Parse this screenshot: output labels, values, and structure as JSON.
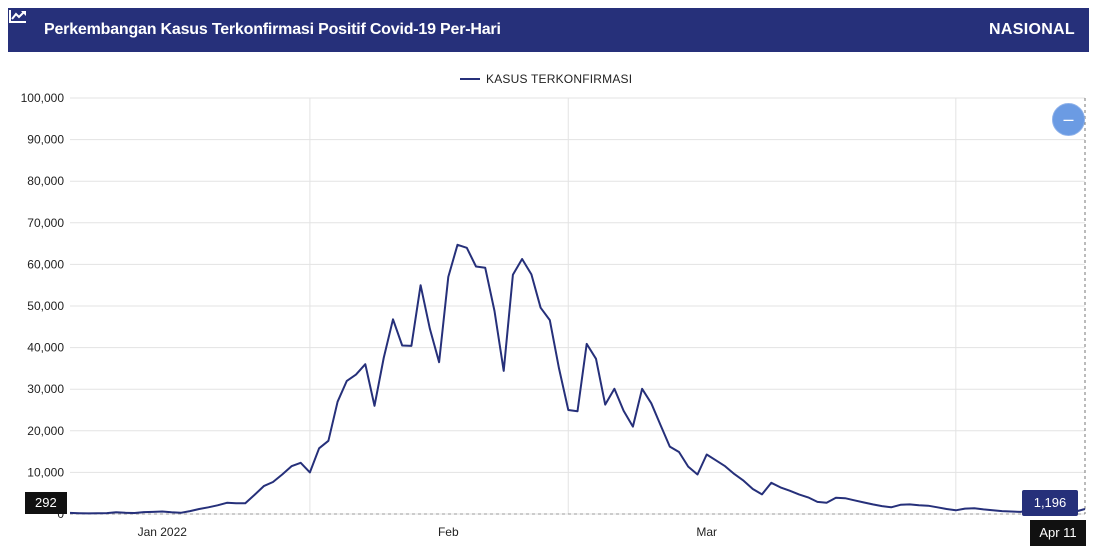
{
  "header": {
    "icon": "line-chart-icon",
    "title": "Perkembangan Kasus Terkonfirmasi Positif Covid-19 Per-Hari",
    "region_label": "NASIONAL",
    "bg_color": "#26307a"
  },
  "zoom_button": {
    "icon": "minus-icon",
    "label": "–"
  },
  "crosshair": {
    "y_value_label": "292",
    "x_date_label": "Apr 11",
    "tooltip_value": "1,196"
  },
  "chart_data": {
    "type": "line",
    "title": "Perkembangan Kasus Terkonfirmasi Positif Covid-19 Per-Hari",
    "xlabel": "",
    "ylabel": "",
    "legend": {
      "position": "top-center",
      "entries": [
        "KASUS TERKONFIRMASI"
      ]
    },
    "grid": true,
    "ylim": [
      0,
      100000
    ],
    "y_ticks": [
      0,
      10000,
      20000,
      30000,
      40000,
      50000,
      60000,
      70000,
      80000,
      90000,
      100000
    ],
    "y_tick_labels": [
      "0",
      "10,000",
      "20,000",
      "30,000",
      "40,000",
      "50,000",
      "60,000",
      "70,000",
      "80,000",
      "90,000",
      "100,000"
    ],
    "x_tick_labels": [
      {
        "label": "Jan 2022",
        "date": "2022-01-01"
      },
      {
        "label": "Feb",
        "date": "2022-02-01"
      },
      {
        "label": "Mar",
        "date": "2022-03-01"
      },
      {
        "label": "Apr 11",
        "date": "2022-04-11"
      }
    ],
    "xlim": [
      "2021-12-22",
      "2022-04-11"
    ],
    "color": "#26307a",
    "series": [
      {
        "name": "KASUS TERKONFIRMASI",
        "points": [
          [
            "2021-12-22",
            260
          ],
          [
            "2021-12-23",
            200
          ],
          [
            "2021-12-24",
            150
          ],
          [
            "2021-12-25",
            180
          ],
          [
            "2021-12-26",
            220
          ],
          [
            "2021-12-27",
            400
          ],
          [
            "2021-12-28",
            300
          ],
          [
            "2021-12-29",
            250
          ],
          [
            "2021-12-30",
            450
          ],
          [
            "2021-12-31",
            500
          ],
          [
            "2022-01-01",
            600
          ],
          [
            "2022-01-02",
            400
          ],
          [
            "2022-01-03",
            300
          ],
          [
            "2022-01-04",
            700
          ],
          [
            "2022-01-05",
            1200
          ],
          [
            "2022-01-06",
            1600
          ],
          [
            "2022-01-07",
            2100
          ],
          [
            "2022-01-08",
            2700
          ],
          [
            "2022-01-09",
            2600
          ],
          [
            "2022-01-10",
            2600
          ],
          [
            "2022-01-11",
            4600
          ],
          [
            "2022-01-12",
            6700
          ],
          [
            "2022-01-13",
            7700
          ],
          [
            "2022-01-14",
            9500
          ],
          [
            "2022-01-15",
            11500
          ],
          [
            "2022-01-16",
            12300
          ],
          [
            "2022-01-17",
            10000
          ],
          [
            "2022-01-18",
            15800
          ],
          [
            "2022-01-19",
            17600
          ],
          [
            "2022-01-20",
            27000
          ],
          [
            "2022-01-21",
            32000
          ],
          [
            "2022-01-22",
            33500
          ],
          [
            "2022-01-23",
            36000
          ],
          [
            "2022-01-24",
            26000
          ],
          [
            "2022-01-25",
            37500
          ],
          [
            "2022-01-26",
            46800
          ],
          [
            "2022-01-27",
            40500
          ],
          [
            "2022-01-28",
            40400
          ],
          [
            "2022-01-29",
            55000
          ],
          [
            "2022-01-30",
            44500
          ],
          [
            "2022-01-31",
            36500
          ],
          [
            "2022-02-01",
            57000
          ],
          [
            "2022-02-02",
            64700
          ],
          [
            "2022-02-03",
            64000
          ],
          [
            "2022-02-04",
            59500
          ],
          [
            "2022-02-05",
            59200
          ],
          [
            "2022-02-06",
            48800
          ],
          [
            "2022-02-07",
            34400
          ],
          [
            "2022-02-08",
            57500
          ],
          [
            "2022-02-09",
            61300
          ],
          [
            "2022-02-10",
            57600
          ],
          [
            "2022-02-11",
            49600
          ],
          [
            "2022-02-12",
            46600
          ],
          [
            "2022-02-13",
            35000
          ],
          [
            "2022-02-14",
            25000
          ],
          [
            "2022-02-15",
            24700
          ],
          [
            "2022-02-16",
            40900
          ],
          [
            "2022-02-17",
            37300
          ],
          [
            "2022-02-18",
            26300
          ],
          [
            "2022-02-19",
            30100
          ],
          [
            "2022-02-20",
            24800
          ],
          [
            "2022-02-21",
            21000
          ],
          [
            "2022-02-22",
            30100
          ],
          [
            "2022-02-23",
            26600
          ],
          [
            "2022-02-24",
            21400
          ],
          [
            "2022-02-25",
            16200
          ],
          [
            "2022-02-26",
            14900
          ],
          [
            "2022-02-27",
            11400
          ],
          [
            "2022-02-28",
            9500
          ],
          [
            "2022-03-01",
            14300
          ],
          [
            "2022-03-02",
            12900
          ],
          [
            "2022-03-03",
            11500
          ],
          [
            "2022-03-04",
            9600
          ],
          [
            "2022-03-05",
            8000
          ],
          [
            "2022-03-06",
            6000
          ],
          [
            "2022-03-07",
            4700
          ],
          [
            "2022-03-08",
            7500
          ],
          [
            "2022-03-09",
            6400
          ],
          [
            "2022-03-10",
            5600
          ],
          [
            "2022-03-11",
            4700
          ],
          [
            "2022-03-12",
            4000
          ],
          [
            "2022-03-13",
            2900
          ],
          [
            "2022-03-14",
            2700
          ],
          [
            "2022-03-15",
            3900
          ],
          [
            "2022-03-16",
            3800
          ],
          [
            "2022-03-17",
            3300
          ],
          [
            "2022-03-18",
            2800
          ],
          [
            "2022-03-19",
            2300
          ],
          [
            "2022-03-20",
            1900
          ],
          [
            "2022-03-21",
            1600
          ],
          [
            "2022-03-22",
            2200
          ],
          [
            "2022-03-23",
            2300
          ],
          [
            "2022-03-24",
            2100
          ],
          [
            "2022-03-25",
            2000
          ],
          [
            "2022-03-26",
            1600
          ],
          [
            "2022-03-27",
            1200
          ],
          [
            "2022-03-28",
            900
          ],
          [
            "2022-03-29",
            1300
          ],
          [
            "2022-03-30",
            1400
          ],
          [
            "2022-03-31",
            1100
          ],
          [
            "2022-04-01",
            900
          ],
          [
            "2022-04-02",
            700
          ],
          [
            "2022-04-03",
            600
          ],
          [
            "2022-04-04",
            500
          ],
          [
            "2022-04-05",
            900
          ],
          [
            "2022-04-06",
            1300
          ],
          [
            "2022-04-07",
            1000
          ],
          [
            "2022-04-08",
            900
          ],
          [
            "2022-04-09",
            700
          ],
          [
            "2022-04-10",
            600
          ],
          [
            "2022-04-11",
            1196
          ]
        ]
      }
    ]
  }
}
